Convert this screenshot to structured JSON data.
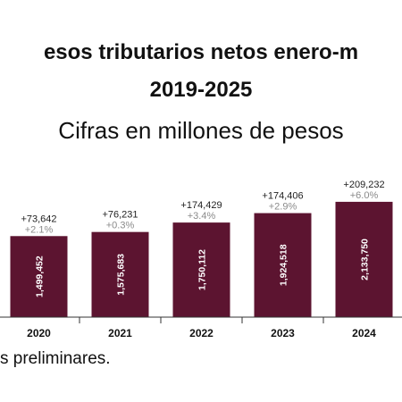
{
  "title_line1": "esos tributarios netos enero-m",
  "title_line2": "2019-2025",
  "subtitle": "Cifras en millones de pesos",
  "footnote": "s preliminares.",
  "colors": {
    "bar": "#5c1430",
    "delta_abs": "#222222",
    "delta_pct": "#8a8a8a",
    "bar_label": "#ffffff",
    "axis": "#333333"
  },
  "chart_data": {
    "type": "bar",
    "categories": [
      "2020",
      "2021",
      "2022",
      "2023",
      "2024"
    ],
    "values": [
      1499452,
      1575683,
      1750112,
      1924518,
      2133750
    ],
    "value_labels": [
      "1,499,452",
      "1,575,683",
      "1,750,112",
      "1,924,518",
      "2,133,750"
    ],
    "change_abs": [
      "+73,642",
      "+76,231",
      "+174,429",
      "+174,406",
      "+209,232"
    ],
    "change_pct": [
      "+2.1%",
      "+0.3%",
      "+3.4%",
      "+2.9%",
      "+6.0%"
    ],
    "title": "esos tributarios netos enero-m 2019-2025",
    "xlabel": "",
    "ylabel": "",
    "ylim": [
      0,
      2200000
    ],
    "grid": false
  }
}
